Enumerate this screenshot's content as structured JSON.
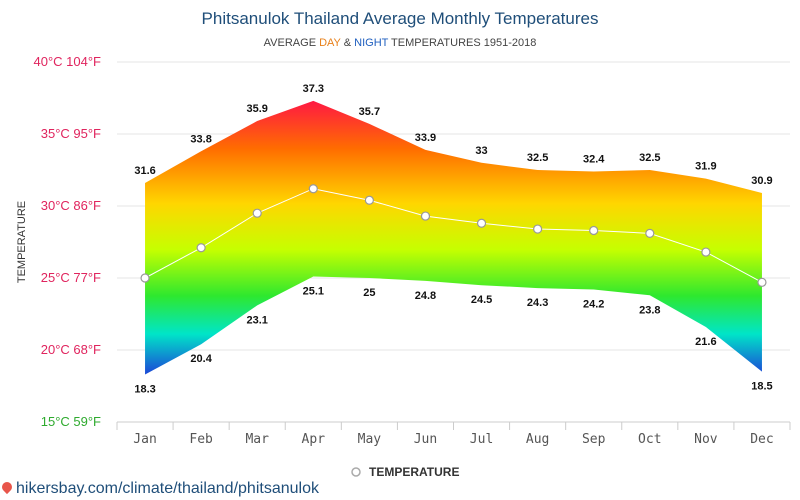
{
  "colors": {
    "title": "#1f4e79",
    "day": "#e8801a",
    "night": "#1f5fbf",
    "tick_celsius": "#e0245e",
    "tick_bottom": "#2eaa2e",
    "grid": "#e6e6e6"
  },
  "footer": {
    "icon": "map-pin-icon",
    "text": "hikersbay.com/climate/thailand/phitsanulok"
  },
  "chart_data": {
    "type": "area",
    "title": "Phitsanulok Thailand Average Monthly Temperatures",
    "subtitle": {
      "prefix": "AVERAGE ",
      "day": "DAY",
      "mid": " & ",
      "night": "NIGHT",
      "suffix": " TEMPERATURES 1951-2018"
    },
    "ylabel": "TEMPERATURE",
    "ylim": [
      15,
      40
    ],
    "y_ticks": [
      {
        "value": 40,
        "label": "40°C 104°F"
      },
      {
        "value": 35,
        "label": "35°C 95°F"
      },
      {
        "value": 30,
        "label": "30°C 86°F"
      },
      {
        "value": 25,
        "label": "25°C 77°F"
      },
      {
        "value": 20,
        "label": "20°C 68°F"
      },
      {
        "value": 15,
        "label": "15°C 59°F"
      }
    ],
    "categories": [
      "Jan",
      "Feb",
      "Mar",
      "Apr",
      "May",
      "Jun",
      "Jul",
      "Aug",
      "Sep",
      "Oct",
      "Nov",
      "Dec"
    ],
    "day": [
      31.6,
      33.8,
      35.9,
      37.3,
      35.7,
      33.9,
      33,
      32.5,
      32.4,
      32.5,
      31.9,
      30.9
    ],
    "night": [
      18.3,
      20.4,
      23.1,
      25.1,
      25,
      24.8,
      24.5,
      24.3,
      24.2,
      23.8,
      21.6,
      18.5
    ],
    "average": [
      25,
      27.1,
      29.5,
      31.2,
      30.4,
      29.3,
      28.8,
      28.4,
      28.3,
      28.1,
      26.8,
      24.7
    ],
    "grid": true,
    "legend": {
      "position": "bottom",
      "label": "TEMPERATURE"
    }
  }
}
